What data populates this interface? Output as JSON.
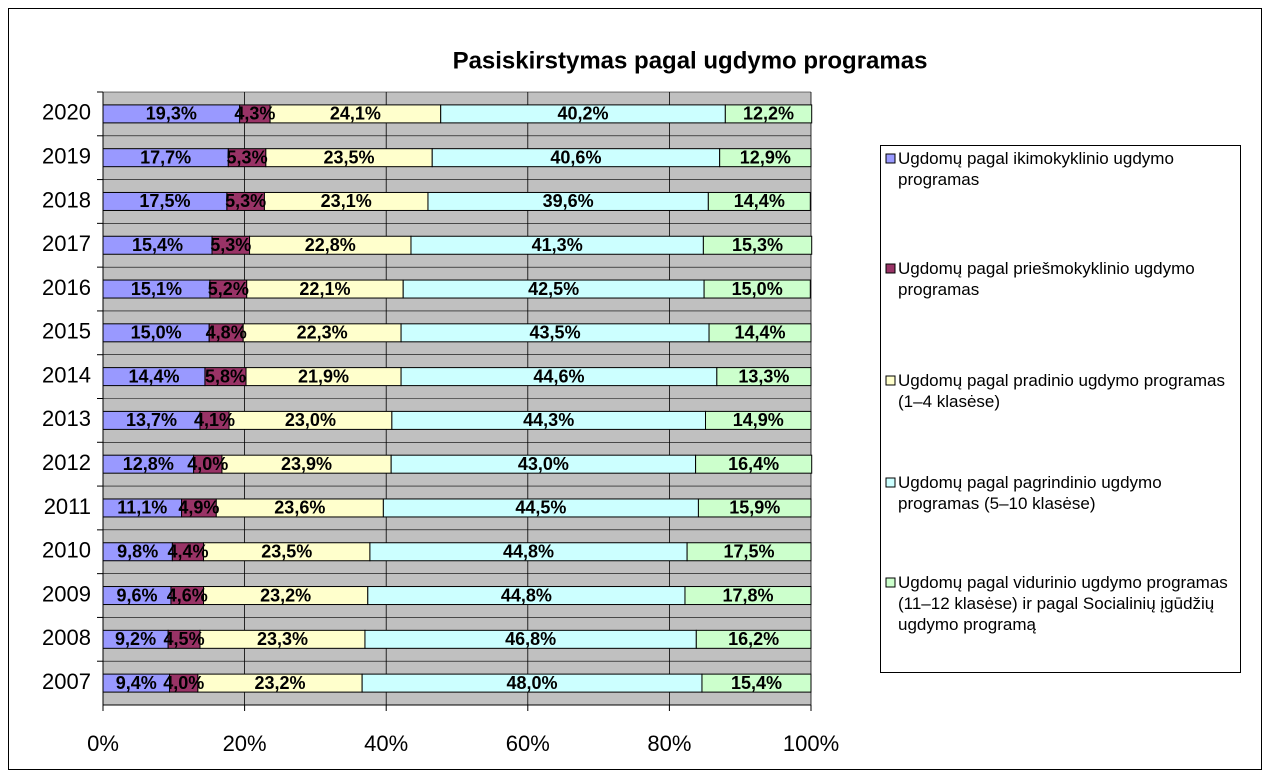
{
  "chart_data": {
    "type": "stacked-barh",
    "title": "Pasiskirstymas pagal ugdymo programas",
    "categories": [
      "2020",
      "2019",
      "2018",
      "2017",
      "2016",
      "2015",
      "2014",
      "2013",
      "2012",
      "2011",
      "2010",
      "2009",
      "2008",
      "2007"
    ],
    "series": [
      {
        "name": "Ugdomų pagal ikimokyklinio ugdymo programas",
        "color": "#9999ff",
        "values": [
          19.3,
          17.7,
          17.5,
          15.4,
          15.1,
          15.0,
          14.4,
          13.7,
          12.8,
          11.1,
          9.8,
          9.6,
          9.2,
          9.4
        ],
        "value_labels": [
          "19,3%",
          "17,7%",
          "17,5%",
          "15,4%",
          "15,1%",
          "15,0%",
          "14,4%",
          "13,7%",
          "12,8%",
          "11,1%",
          "9,8%",
          "9,6%",
          "9,2%",
          "9,4%"
        ]
      },
      {
        "name": "Ugdomų pagal priešmokyklinio ugdymo programas",
        "color": "#993366",
        "values": [
          4.3,
          5.3,
          5.3,
          5.3,
          5.2,
          4.8,
          5.8,
          4.1,
          4.0,
          4.9,
          4.4,
          4.6,
          4.5,
          4.0
        ],
        "value_labels": [
          "4,3%",
          "5,3%",
          "5,3%",
          "5,3%",
          "5,2%",
          "4,8%",
          "5,8%",
          "4,1%",
          "4,0%",
          "4,9%",
          "4,4%",
          "4,6%",
          "4,5%",
          "4,0%"
        ]
      },
      {
        "name": "Ugdomų pagal pradinio ugdymo programas (1–4 klasėse)",
        "color": "#ffffcc",
        "values": [
          24.1,
          23.5,
          23.1,
          22.8,
          22.1,
          22.3,
          21.9,
          23.0,
          23.9,
          23.6,
          23.5,
          23.2,
          23.3,
          23.2
        ],
        "value_labels": [
          "24,1%",
          "23,5%",
          "23,1%",
          "22,8%",
          "22,1%",
          "22,3%",
          "21,9%",
          "23,0%",
          "23,9%",
          "23,6%",
          "23,5%",
          "23,2%",
          "23,3%",
          "23,2%"
        ]
      },
      {
        "name": "Ugdomų pagal pagrindinio ugdymo programas (5–10 klasėse)",
        "color": "#ccffff",
        "values": [
          40.2,
          40.6,
          39.6,
          41.3,
          42.5,
          43.5,
          44.6,
          44.3,
          43.0,
          44.5,
          44.8,
          44.8,
          46.8,
          48.0
        ],
        "value_labels": [
          "40,2%",
          "40,6%",
          "39,6%",
          "41,3%",
          "42,5%",
          "43,5%",
          "44,6%",
          "44,3%",
          "43,0%",
          "44,5%",
          "44,8%",
          "44,8%",
          "46,8%",
          "48,0%"
        ]
      },
      {
        "name": "Ugdomų pagal vidurinio ugdymo programas (11–12 klasėse) ir pagal Socialinių įgūdžių ugdymo programą",
        "color": "#ccffcc",
        "values": [
          12.2,
          12.9,
          14.4,
          15.3,
          15.0,
          14.4,
          13.3,
          14.9,
          16.4,
          15.9,
          17.5,
          17.8,
          16.2,
          15.4
        ],
        "value_labels": [
          "12,2%",
          "12,9%",
          "14,4%",
          "15,3%",
          "15,0%",
          "14,4%",
          "13,3%",
          "14,9%",
          "16,4%",
          "15,9%",
          "17,5%",
          "17,8%",
          "16,2%",
          "15,4%"
        ]
      }
    ],
    "xlim": [
      0,
      100
    ],
    "xticks": [
      {
        "value": 0,
        "label": "0%"
      },
      {
        "value": 20,
        "label": "20%"
      },
      {
        "value": 40,
        "label": "40%"
      },
      {
        "value": 60,
        "label": "60%"
      },
      {
        "value": 80,
        "label": "80%"
      },
      {
        "value": 100,
        "label": "100%"
      }
    ],
    "grid": true,
    "legend": "right"
  }
}
